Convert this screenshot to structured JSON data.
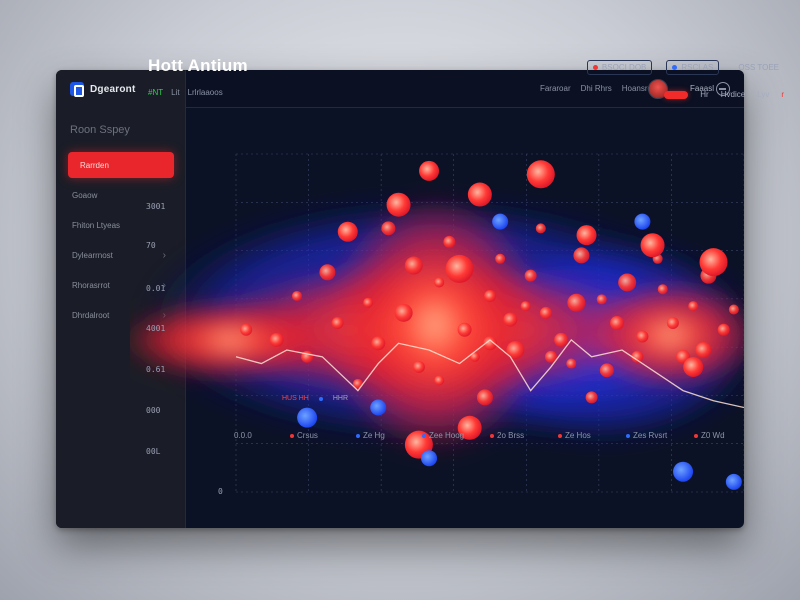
{
  "app": {
    "name": "Dgearont"
  },
  "sidebar": {
    "section_title": "Roon Sspey",
    "items": [
      {
        "label": "Rarrden",
        "active": true,
        "chevron": false
      },
      {
        "label": "Goaow",
        "active": false,
        "chevron": false
      },
      {
        "label": "Fhiton Ltyeas",
        "active": false,
        "chevron": false
      },
      {
        "label": "Dylearrnost",
        "active": false,
        "chevron": true
      },
      {
        "label": "Rhorasrrot",
        "active": false,
        "chevron": true
      },
      {
        "label": "Dhrdalroot",
        "active": false,
        "chevron": true
      }
    ]
  },
  "topbar": {
    "links": [
      "Fararoar",
      "Dhi Rhrs",
      "Hoansro"
    ],
    "user_name": "Faaasl"
  },
  "main": {
    "title": "Hott Antium",
    "legend": [
      {
        "label": "BSOCI DOB",
        "color": "#f23535"
      },
      {
        "label": "RSCLAS",
        "color": "#2f6bff"
      },
      {
        "label": "OSS TOEE",
        "color": ""
      }
    ],
    "subrow": {
      "green": "#NT",
      "a": "Lit",
      "b": "Lrlrlaaoos"
    },
    "filters": [
      "Hr",
      "Hvdice",
      "Lyv",
      "r"
    ]
  },
  "chart_data": {
    "type": "heatmap",
    "y_ticks": [
      "3001",
      "70",
      "0.01",
      "4001",
      "0.61",
      "000",
      "00L",
      "0"
    ],
    "x_ticks": [
      {
        "label": "0.0.0",
        "color": ""
      },
      {
        "label": "Crsus",
        "color": "#f23535"
      },
      {
        "label": "Ze Hg",
        "color": "#2f6bff"
      },
      {
        "label": "Zee Hoog",
        "color": "#2f6bff"
      },
      {
        "label": "2o Brss",
        "color": "#f23535"
      },
      {
        "label": "Ze Hos",
        "color": "#f23535"
      },
      {
        "label": "Zes Rvsrt",
        "color": "#2f6bff"
      },
      {
        "label": "Z0 Wd",
        "color": "#f23535"
      }
    ],
    "inline_legend": [
      "HUS HH",
      "HHR"
    ],
    "hot_points": [
      [
        0.02,
        0.52
      ],
      [
        0.08,
        0.55
      ],
      [
        0.12,
        0.42
      ],
      [
        0.18,
        0.35
      ],
      [
        0.2,
        0.5
      ],
      [
        0.24,
        0.68
      ],
      [
        0.28,
        0.56
      ],
      [
        0.33,
        0.47
      ],
      [
        0.36,
        0.63
      ],
      [
        0.4,
        0.38
      ],
      [
        0.42,
        0.26
      ],
      [
        0.45,
        0.52
      ],
      [
        0.47,
        0.6
      ],
      [
        0.49,
        0.72
      ],
      [
        0.5,
        0.42
      ],
      [
        0.52,
        0.31
      ],
      [
        0.54,
        0.49
      ],
      [
        0.55,
        0.58
      ],
      [
        0.58,
        0.36
      ],
      [
        0.6,
        0.22
      ],
      [
        0.61,
        0.47
      ],
      [
        0.64,
        0.55
      ],
      [
        0.66,
        0.62
      ],
      [
        0.68,
        0.3
      ],
      [
        0.7,
        0.72
      ],
      [
        0.72,
        0.43
      ],
      [
        0.75,
        0.5
      ],
      [
        0.77,
        0.38
      ],
      [
        0.8,
        0.54
      ],
      [
        0.83,
        0.31
      ],
      [
        0.86,
        0.5
      ],
      [
        0.88,
        0.6
      ],
      [
        0.9,
        0.45
      ],
      [
        0.93,
        0.36
      ],
      [
        0.96,
        0.52
      ],
      [
        0.98,
        0.46
      ],
      [
        0.3,
        0.22
      ],
      [
        0.35,
        0.33
      ],
      [
        0.44,
        0.36
      ],
      [
        0.57,
        0.45
      ],
      [
        0.62,
        0.6
      ],
      [
        0.73,
        0.64
      ],
      [
        0.84,
        0.4
      ],
      [
        0.92,
        0.58
      ],
      [
        0.14,
        0.6
      ],
      [
        0.26,
        0.44
      ],
      [
        0.5,
        0.56
      ],
      [
        0.67,
        0.44
      ],
      [
        0.79,
        0.6
      ],
      [
        0.4,
        0.67
      ]
    ],
    "cool_points": [
      [
        0.14,
        0.78
      ],
      [
        0.28,
        0.75
      ],
      [
        0.38,
        0.9
      ],
      [
        0.52,
        0.2
      ],
      [
        0.8,
        0.2
      ],
      [
        0.88,
        0.94
      ],
      [
        0.98,
        0.97
      ]
    ],
    "trend_line": [
      [
        0.0,
        0.6
      ],
      [
        0.05,
        0.62
      ],
      [
        0.1,
        0.58
      ],
      [
        0.17,
        0.6
      ],
      [
        0.24,
        0.7
      ],
      [
        0.28,
        0.62
      ],
      [
        0.32,
        0.56
      ],
      [
        0.38,
        0.58
      ],
      [
        0.44,
        0.62
      ],
      [
        0.5,
        0.55
      ],
      [
        0.54,
        0.6
      ],
      [
        0.58,
        0.7
      ],
      [
        0.62,
        0.63
      ],
      [
        0.66,
        0.55
      ],
      [
        0.7,
        0.6
      ],
      [
        0.76,
        0.58
      ],
      [
        0.82,
        0.64
      ],
      [
        0.88,
        0.7
      ],
      [
        0.94,
        0.73
      ],
      [
        1.0,
        0.75
      ]
    ]
  }
}
